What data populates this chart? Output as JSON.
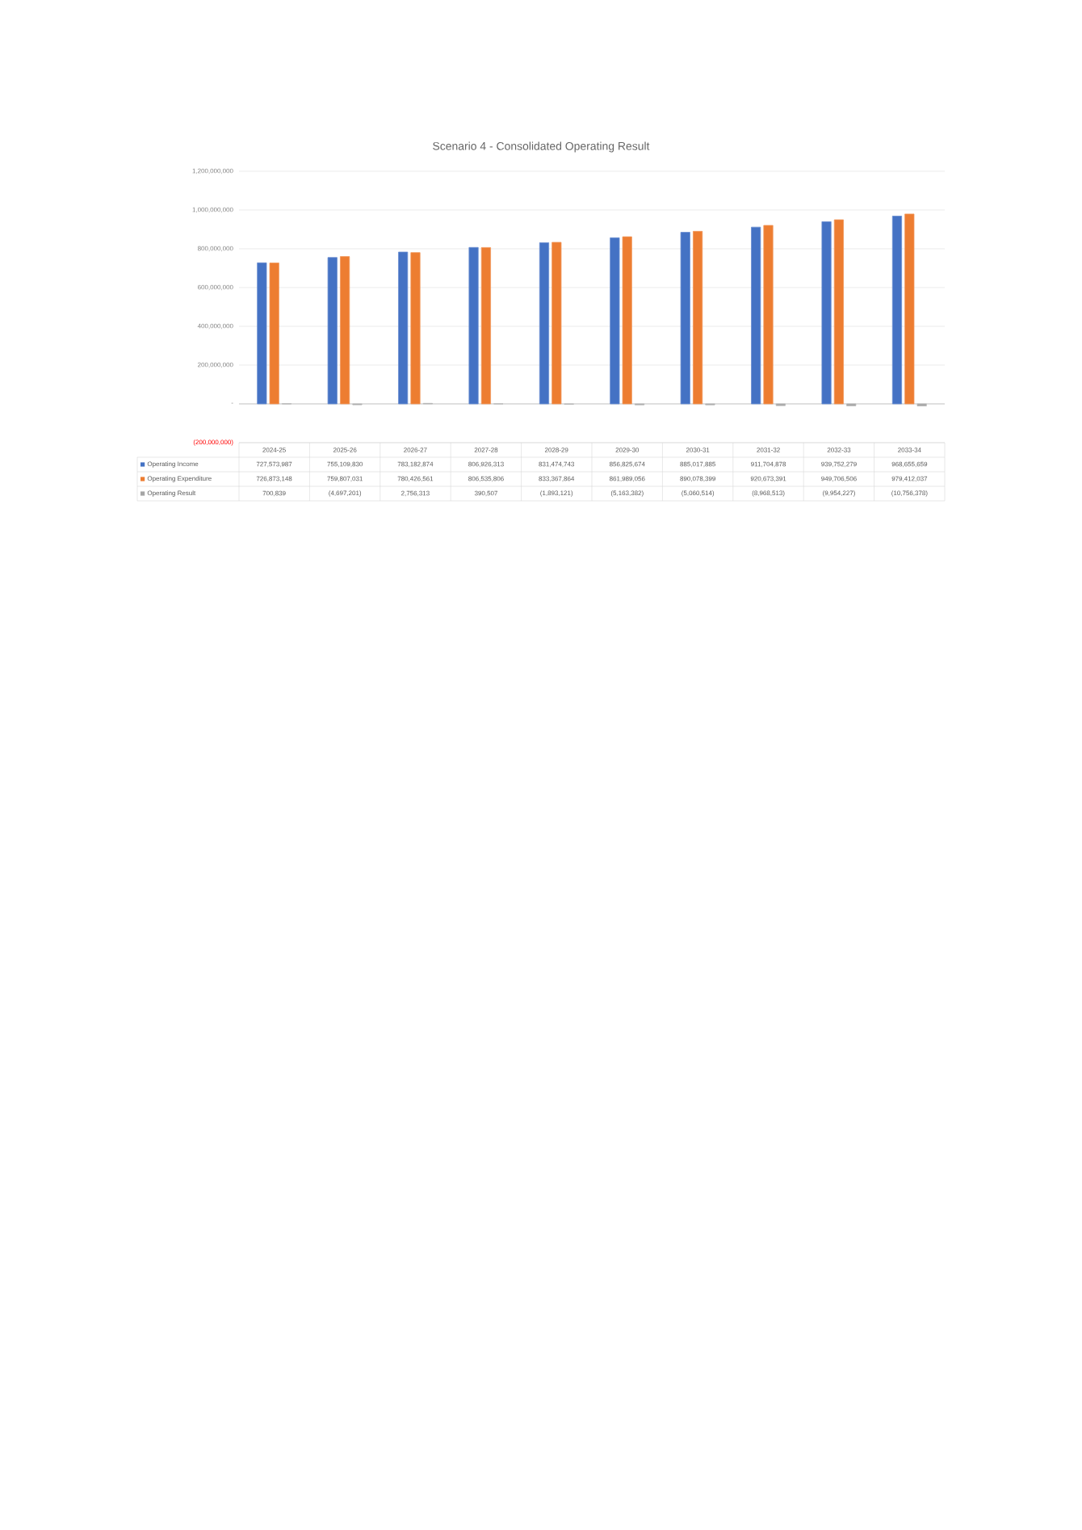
{
  "chart_data": {
    "type": "bar",
    "title": "Scenario 4 - Consolidated Operating Result",
    "categories": [
      "2024-25",
      "2025-26",
      "2026-27",
      "2027-28",
      "2028-29",
      "2029-30",
      "2030-31",
      "2031-32",
      "2032-33",
      "2033-34"
    ],
    "series": [
      {
        "name": "Operating Income",
        "color": "#4472c4",
        "values": [
          727573987,
          755109830,
          783182874,
          806926313,
          831474743,
          856825674,
          885017885,
          911704878,
          939752279,
          968655659
        ],
        "value_labels": [
          "727,573,987",
          "755,109,830",
          "783,182,874",
          "806,926,313",
          "831,474,743",
          "856,825,674",
          "885,017,885",
          "911,704,878",
          "939,752,279",
          "968,655,659"
        ]
      },
      {
        "name": "Operating Expenditure",
        "color": "#ed7d31",
        "values": [
          726873148,
          759807031,
          780426561,
          806535806,
          833367864,
          861989056,
          890078399,
          920673391,
          949706506,
          979412037
        ],
        "value_labels": [
          "726,873,148",
          "759,807,031",
          "780,426,561",
          "806,535,806",
          "833,367,864",
          "861,989,056",
          "890,078,399",
          "920,673,391",
          "949,706,506",
          "979,412,037"
        ]
      },
      {
        "name": "Operating Result",
        "color": "#a5a5a5",
        "values": [
          700839,
          -4697201,
          2756313,
          390507,
          -1893121,
          -5163382,
          -5060514,
          -8968513,
          -9954227,
          -10756378
        ],
        "value_labels": [
          "700,839",
          "(4,697,201)",
          "2,756,313",
          "390,507",
          "(1,893,121)",
          "(5,163,382)",
          "(5,060,514)",
          "(8,968,513)",
          "(9,954,227)",
          "(10,756,378)"
        ]
      }
    ],
    "ylim": [
      -200000000,
      1200000000
    ],
    "yticks": [
      {
        "value": -200000000,
        "label": "(200,000,000)"
      },
      {
        "value": 0,
        "label": "-"
      },
      {
        "value": 200000000,
        "label": "200,000,000"
      },
      {
        "value": 400000000,
        "label": "400,000,000"
      },
      {
        "value": 600000000,
        "label": "600,000,000"
      },
      {
        "value": 800000000,
        "label": "800,000,000"
      },
      {
        "value": 1000000000,
        "label": "1,000,000,000"
      },
      {
        "value": 1200000000,
        "label": "1,200,000,000"
      }
    ],
    "grid": "y",
    "legend": "bottom"
  }
}
